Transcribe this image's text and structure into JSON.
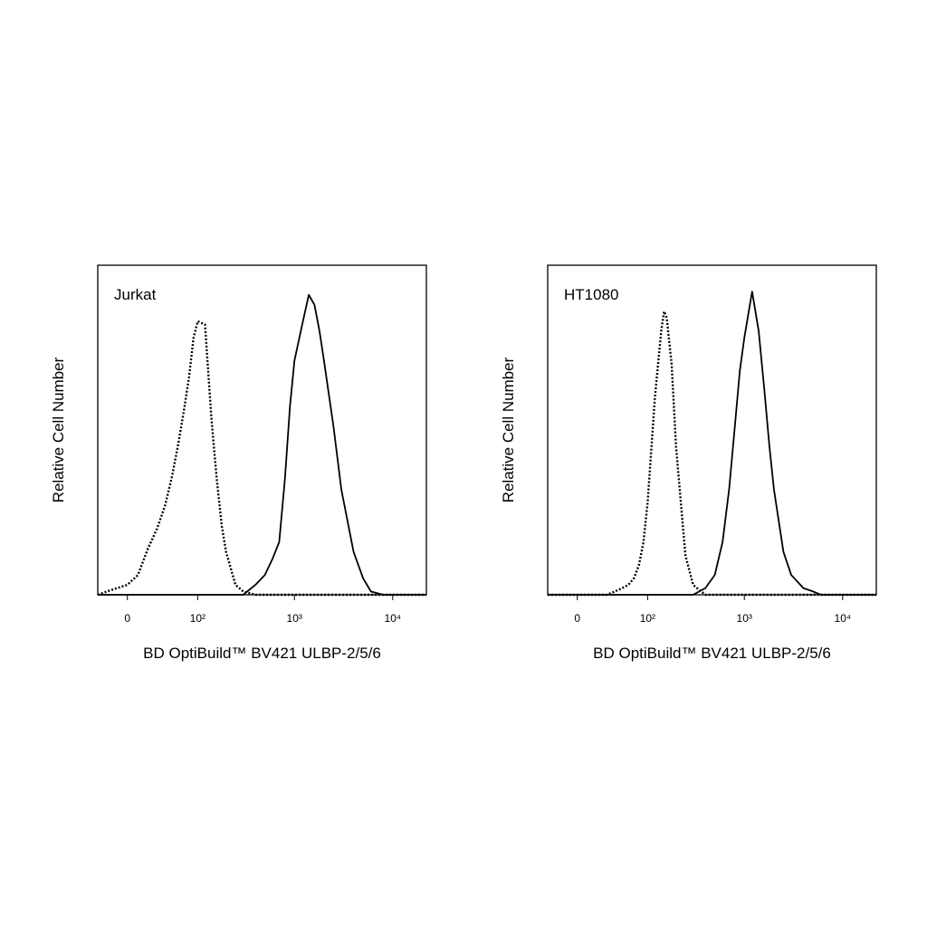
{
  "chart_data": [
    {
      "type": "histogram-line",
      "annotation": "Jurkat",
      "ylabel": "Relative Cell Number",
      "xlabel": "BD OptiBuild™ BV421 ULBP-2/5/6",
      "xscale": "biexponential",
      "xlim": [
        -30,
        22000
      ],
      "ylim": [
        0,
        100
      ],
      "xticks": [
        0,
        {
          "value": 100,
          "label": "10²"
        },
        {
          "value": 1000,
          "label": "10³"
        },
        {
          "value": 10000,
          "label": "10⁴"
        }
      ],
      "x": [
        -30,
        -20,
        -10,
        0,
        10,
        20,
        30,
        40,
        50,
        60,
        70,
        80,
        90,
        100,
        120,
        140,
        150,
        160,
        180,
        200,
        250,
        300,
        400,
        500,
        600,
        700,
        800,
        900,
        1000,
        1200,
        1400,
        1600,
        1800,
        2000,
        2500,
        3000,
        4000,
        5000,
        6000,
        8000,
        10000,
        15000,
        22000
      ],
      "series": [
        {
          "color": "#000000",
          "dash": "dotted",
          "values": [
            0,
            1,
            2,
            3,
            6,
            14,
            20,
            27,
            36,
            46,
            56,
            66,
            78,
            83,
            82,
            54,
            44,
            35,
            21,
            13,
            3,
            1,
            0,
            0,
            0,
            0,
            0,
            0,
            0,
            0,
            0,
            0,
            0,
            0,
            0,
            0,
            0,
            0,
            0,
            0,
            0,
            0,
            0
          ]
        },
        {
          "color": "#000000",
          "dash": "solid",
          "values": [
            0,
            0,
            0,
            0,
            0,
            0,
            0,
            0,
            0,
            0,
            0,
            0,
            0,
            0,
            0,
            0,
            0,
            0,
            0,
            0,
            0,
            0,
            3,
            6,
            11,
            16,
            35,
            57,
            71,
            82,
            91,
            88,
            80,
            71,
            51,
            32,
            13,
            5,
            1,
            0,
            0,
            0,
            0
          ]
        }
      ]
    },
    {
      "type": "histogram-line",
      "annotation": "HT1080",
      "ylabel": "Relative Cell Number",
      "xlabel": "BD OptiBuild™ BV421 ULBP-2/5/6",
      "xscale": "biexponential",
      "xlim": [
        -30,
        22000
      ],
      "ylim": [
        0,
        100
      ],
      "xticks": [
        0,
        {
          "value": 100,
          "label": "10²"
        },
        {
          "value": 1000,
          "label": "10³"
        },
        {
          "value": 10000,
          "label": "10⁴"
        }
      ],
      "x": [
        -30,
        -20,
        -10,
        0,
        10,
        20,
        30,
        40,
        50,
        60,
        70,
        80,
        90,
        100,
        120,
        140,
        150,
        160,
        180,
        200,
        250,
        300,
        400,
        500,
        600,
        700,
        800,
        900,
        1000,
        1200,
        1400,
        1600,
        1800,
        2000,
        2500,
        3000,
        4000,
        5000,
        6000,
        8000,
        10000,
        15000,
        22000
      ],
      "series": [
        {
          "color": "#000000",
          "dash": "dotted",
          "values": [
            0,
            0,
            0,
            0,
            0,
            0,
            0,
            1,
            2,
            3,
            5,
            9,
            16,
            28,
            60,
            80,
            86,
            84,
            70,
            45,
            12,
            3,
            0,
            0,
            0,
            0,
            0,
            0,
            0,
            0,
            0,
            0,
            0,
            0,
            0,
            0,
            0,
            0,
            0,
            0,
            0,
            0,
            0
          ]
        },
        {
          "color": "#000000",
          "dash": "solid",
          "values": [
            0,
            0,
            0,
            0,
            0,
            0,
            0,
            0,
            0,
            0,
            0,
            0,
            0,
            0,
            0,
            0,
            0,
            0,
            0,
            0,
            0,
            0,
            2,
            6,
            16,
            32,
            51,
            68,
            78,
            92,
            80,
            62,
            45,
            32,
            13,
            6,
            2,
            1,
            0,
            0,
            0,
            0,
            0
          ]
        }
      ]
    }
  ]
}
